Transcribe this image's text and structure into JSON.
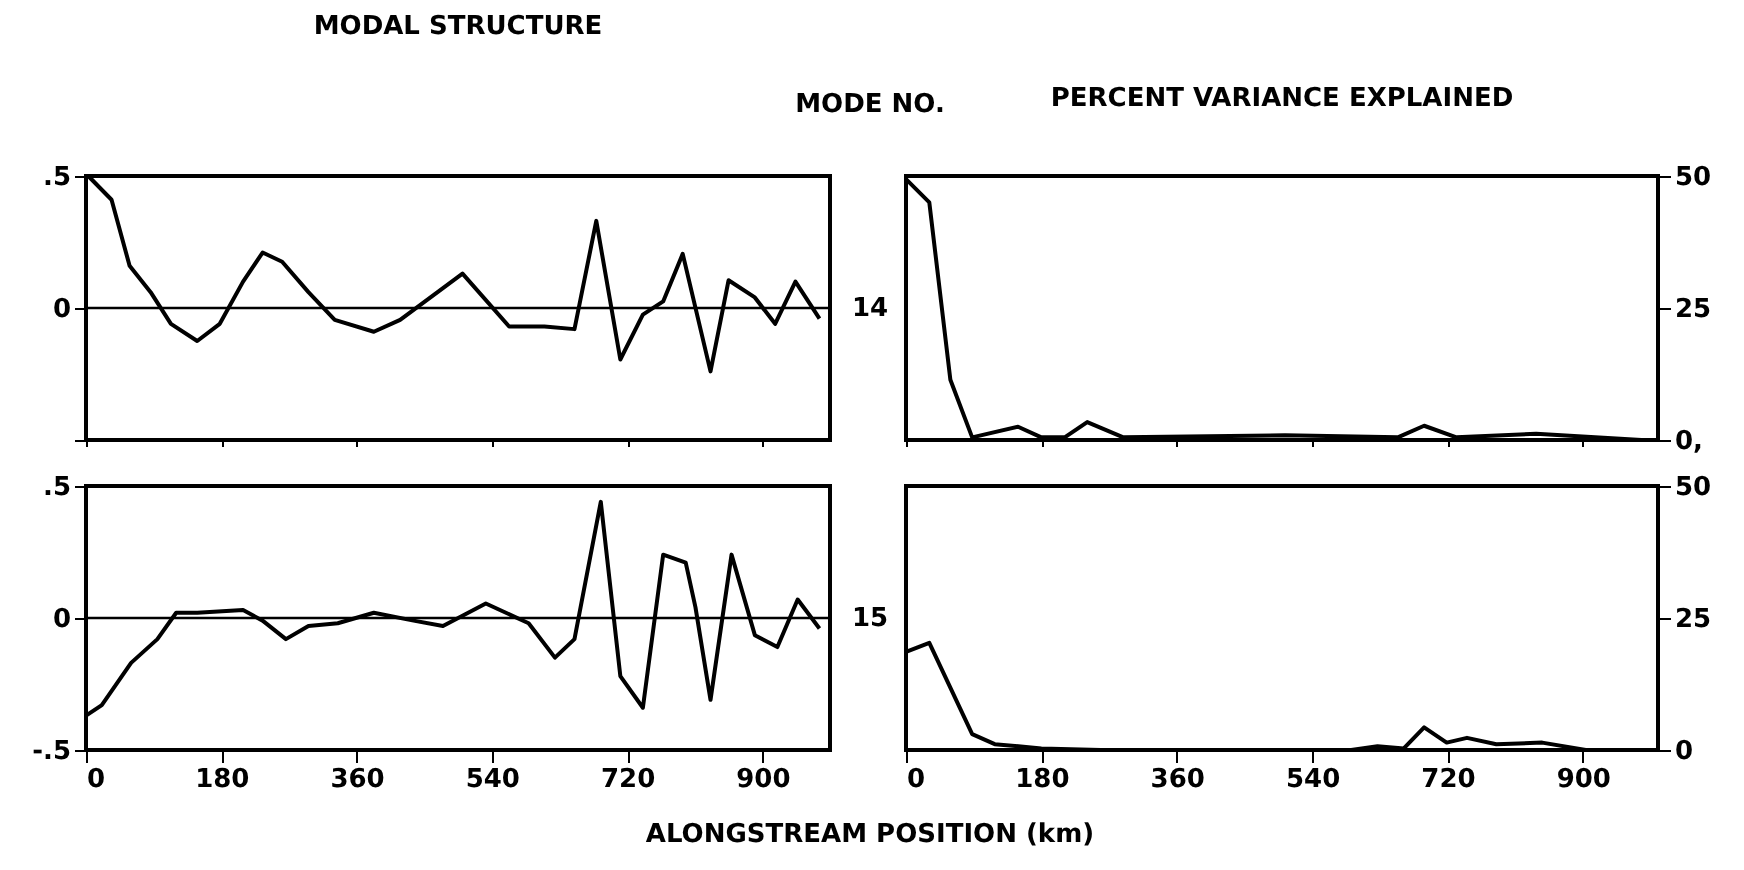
{
  "chart_data": [
    {
      "type": "line",
      "title": "MODAL STRUCTURE",
      "annotations": [
        "MODE NO.",
        "14"
      ],
      "xlim": [
        0,
        990
      ],
      "xticks": [
        0,
        180,
        360,
        540,
        720,
        900
      ],
      "ylim": [
        -0.5,
        0.5
      ],
      "yticks": [
        {
          "value": 0.5,
          "label": ".5"
        },
        0,
        {
          "value": -0.5,
          "label": null
        }
      ],
      "tick_labels": "y",
      "ref_lines": [
        {
          "axis": "y",
          "value": 0,
          "label": null
        }
      ],
      "series": [
        {
          "color": "#000000",
          "x": [
            3,
            34,
            58,
            86,
            113,
            148,
            178,
            209,
            235,
            261,
            296,
            331,
            383,
            418,
            501,
            563,
            610,
            650,
            679,
            711,
            741,
            768,
            794,
            831,
            855,
            890,
            917,
            944,
            976
          ],
          "values": [
            0.5,
            0.41,
            0.16,
            0.06,
            -0.06,
            -0.125,
            -0.06,
            0.1,
            0.21,
            0.175,
            0.06,
            -0.045,
            -0.09,
            -0.045,
            0.13,
            -0.07,
            -0.07,
            -0.08,
            0.33,
            -0.195,
            -0.025,
            0.025,
            0.205,
            -0.24,
            0.105,
            0.04,
            -0.06,
            0.1,
            -0.04
          ]
        }
      ]
    },
    {
      "type": "line",
      "title": "PERCENT VARIANCE EXPLAINED",
      "xlim": [
        0,
        1000
      ],
      "xticks": [
        0,
        180,
        360,
        540,
        720,
        900
      ],
      "ylim": [
        0,
        50
      ],
      "yticks": [
        50,
        25,
        {
          "value": 0,
          "label": "0,"
        }
      ],
      "tick_labels": "y",
      "series": [
        {
          "color": "#000000",
          "x": [
            0,
            31,
            59,
            88,
            149,
            180,
            211,
            241,
            289,
            504,
            654,
            689,
            732,
            838,
            978
          ],
          "values": [
            49.4,
            45,
            11.4,
            0.5,
            2.5,
            0.5,
            0.5,
            3.4,
            0.5,
            0.9,
            0.5,
            2.7,
            0.5,
            1.2,
            0
          ]
        }
      ]
    },
    {
      "type": "line",
      "xlabel": "ALONGSTREAM POSITION (km)",
      "annotations": [
        "15"
      ],
      "xlim": [
        0,
        990
      ],
      "xticks": [
        0,
        180,
        360,
        540,
        720,
        900
      ],
      "ylim": [
        -0.5,
        0.5
      ],
      "yticks": [
        {
          "value": 0.5,
          "label": ".5"
        },
        0,
        {
          "value": -0.5,
          "label": "-.5"
        }
      ],
      "ref_lines": [
        {
          "axis": "y",
          "value": 0,
          "label": null
        }
      ],
      "series": [
        {
          "color": "#000000",
          "x": [
            0,
            21,
            60,
            95,
            120,
            148,
            209,
            235,
            266,
            296,
            335,
            383,
            436,
            475,
            532,
            589,
            624,
            650,
            685,
            711,
            741,
            768,
            798,
            811,
            831,
            859,
            890,
            920,
            947,
            976
          ],
          "values": [
            -0.37,
            -0.33,
            -0.17,
            -0.08,
            0.02,
            0.02,
            0.03,
            -0.01,
            -0.08,
            -0.03,
            -0.02,
            0.02,
            -0.01,
            -0.03,
            0.055,
            -0.02,
            -0.15,
            -0.08,
            0.44,
            -0.22,
            -0.34,
            0.24,
            0.21,
            0.04,
            -0.31,
            0.24,
            -0.065,
            -0.11,
            0.07,
            -0.04
          ]
        }
      ]
    },
    {
      "type": "line",
      "xlim": [
        0,
        1000
      ],
      "xticks": [
        0,
        180,
        360,
        540,
        720,
        900
      ],
      "ylim": [
        0,
        50
      ],
      "yticks": [
        50,
        25,
        0
      ],
      "series": [
        {
          "color": "#000000",
          "x": [
            0,
            31,
            88,
            118,
            180,
            259,
            592,
            627,
            662,
            689,
            719,
            746,
            785,
            846,
            904
          ],
          "values": [
            18.6,
            20.3,
            3.0,
            1.1,
            0.3,
            0,
            0,
            0.7,
            0.3,
            4.3,
            1.4,
            2.3,
            1.1,
            1.4,
            0
          ]
        }
      ]
    }
  ]
}
